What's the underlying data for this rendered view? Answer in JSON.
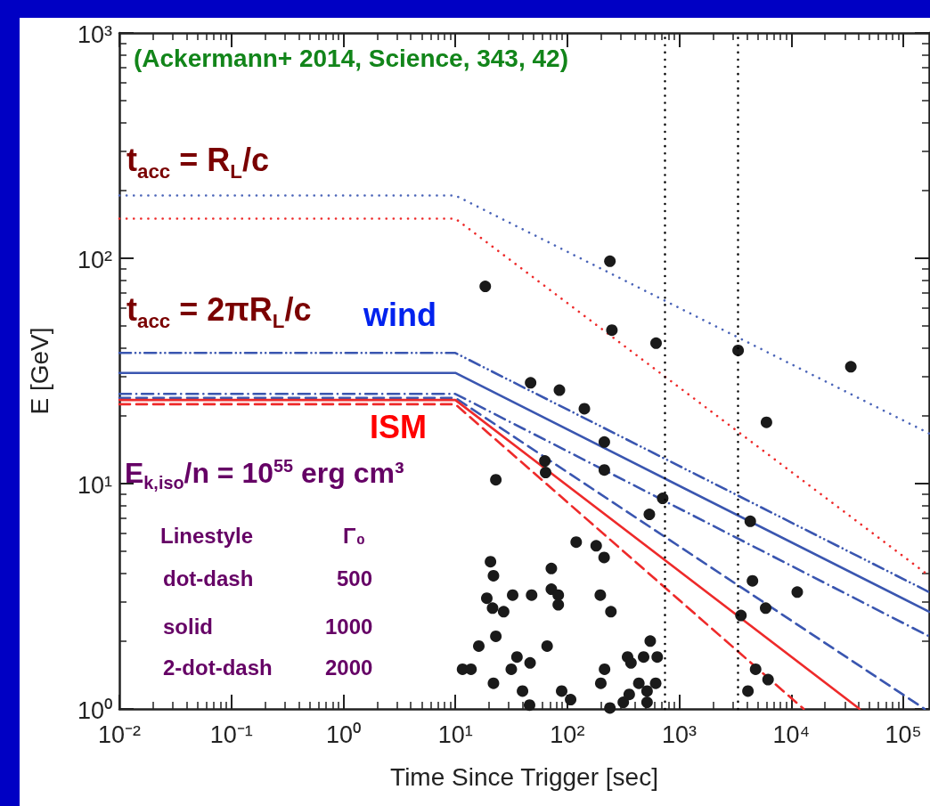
{
  "chart_data": {
    "type": "line",
    "xlabel": "Time Since Trigger [sec]",
    "ylabel": "E [GeV]",
    "log": "xy",
    "grid": false,
    "xlim": [
      0.01,
      170000
    ],
    "ylim": [
      1,
      1000
    ],
    "xticks": [
      {
        "value": 0.01,
        "label": "10⁻²"
      },
      {
        "value": 0.1,
        "label": "10⁻¹"
      },
      {
        "value": 1,
        "label": "10⁰"
      },
      {
        "value": 10,
        "label": "10¹"
      },
      {
        "value": 100,
        "label": "10²"
      },
      {
        "value": 1000,
        "label": "10³"
      },
      {
        "value": 10000,
        "label": "10⁴"
      },
      {
        "value": 100000,
        "label": "10⁵"
      }
    ],
    "yticks": [
      {
        "value": 1,
        "label": "10⁰"
      },
      {
        "value": 10,
        "label": "10¹"
      },
      {
        "value": 100,
        "label": "10²"
      },
      {
        "value": 1000,
        "label": "10³"
      }
    ],
    "series": [
      {
        "color": "#4a64b8",
        "line_style": "dotted",
        "marker": "none",
        "x": [
          0.01,
          10,
          170000
        ],
        "values": [
          190,
          190,
          16.7
        ]
      },
      {
        "color": "#ee2a2a",
        "line_style": "dotted",
        "marker": "none",
        "x": [
          0.01,
          10,
          170000
        ],
        "values": [
          150,
          150,
          3.9
        ]
      },
      {
        "color": "#3a56b0",
        "line_style": "dashdotdot",
        "marker": "none",
        "x": [
          0.01,
          10,
          170000
        ],
        "values": [
          38,
          38,
          3.3
        ]
      },
      {
        "color": "#3a56b0",
        "line_style": "solid",
        "marker": "none",
        "x": [
          0.01,
          10,
          170000
        ],
        "values": [
          31,
          31,
          2.7
        ]
      },
      {
        "color": "#3a56b0",
        "line_style": "dashdot",
        "marker": "none",
        "x": [
          0.01,
          10,
          170000
        ],
        "values": [
          25,
          25,
          2.1
        ]
      },
      {
        "color": "#3a56b0",
        "line_style": "dashed",
        "marker": "none",
        "x": [
          0.01,
          10,
          155000
        ],
        "values": [
          24,
          24,
          1
        ]
      },
      {
        "color": "#ee2a2a",
        "line_style": "solid",
        "marker": "none",
        "x": [
          0.01,
          10,
          40700
        ],
        "values": [
          23.5,
          23.5,
          1
        ]
      },
      {
        "color": "#ee2a2a",
        "line_style": "dashed",
        "marker": "none",
        "x": [
          0.01,
          10,
          12900
        ],
        "values": [
          22.5,
          22.5,
          1
        ]
      },
      {
        "type": "scatter",
        "color": "#1a1a1a",
        "marker": "circle",
        "x": [
          18.5,
          240,
          250,
          620,
          3350,
          34000,
          47,
          85,
          142,
          214,
          6000,
          63,
          214,
          23,
          64,
          710,
          540,
          4300,
          20.6,
          21.9,
          19.1,
          32.5,
          48,
          72,
          72,
          83,
          83,
          21.5,
          27,
          23,
          16.2,
          11.6,
          13.8,
          35.5,
          31.6,
          46.5,
          66,
          21.9,
          39.8,
          46,
          89,
          107,
          120,
          181,
          213,
          197,
          245,
          199,
          215,
          240,
          316,
          357,
          345,
          370,
          480,
          550,
          635,
          435,
          615,
          515,
          515,
          4500,
          5900,
          3550,
          11300,
          4800,
          6200,
          4100
        ],
        "values": [
          75,
          97,
          48,
          42,
          39,
          33,
          28,
          26,
          21.5,
          15.3,
          18.7,
          12.6,
          11.5,
          10.4,
          11.2,
          8.6,
          7.3,
          6.8,
          4.5,
          3.9,
          3.1,
          3.2,
          3.2,
          4.2,
          3.4,
          3.2,
          2.9,
          2.8,
          2.7,
          2.1,
          1.9,
          1.5,
          1.5,
          1.7,
          1.5,
          1.6,
          1.9,
          1.3,
          1.2,
          1.04,
          1.2,
          1.1,
          5.5,
          5.3,
          4.7,
          3.2,
          2.7,
          1.3,
          1.5,
          1.01,
          1.07,
          1.16,
          1.7,
          1.6,
          1.7,
          2,
          1.7,
          1.3,
          1.3,
          1.2,
          1.07,
          3.7,
          2.8,
          2.6,
          3.3,
          1.5,
          1.35,
          1.2
        ]
      }
    ],
    "ref_lines": [
      {
        "axis": "x",
        "value": 740,
        "color": "#000000",
        "line_style": "dotted"
      },
      {
        "axis": "x",
        "value": 3300,
        "color": "#000000",
        "line_style": "dotted"
      }
    ],
    "annotations": [
      "(Ackermann+ 2014, Science, 343, 42)",
      "t$_{acc}$ = R$_{L}$/c",
      "t$_{acc}$ = 2πR$_{L}$/c",
      "wind",
      "ISM",
      "E$_{k,iso}$/n = 10$^{55}$ erg cm³",
      "Linestyle",
      "Γ₀",
      "dot-dash",
      "500",
      "solid",
      "1000",
      "2-dot-dash",
      "2000"
    ]
  }
}
